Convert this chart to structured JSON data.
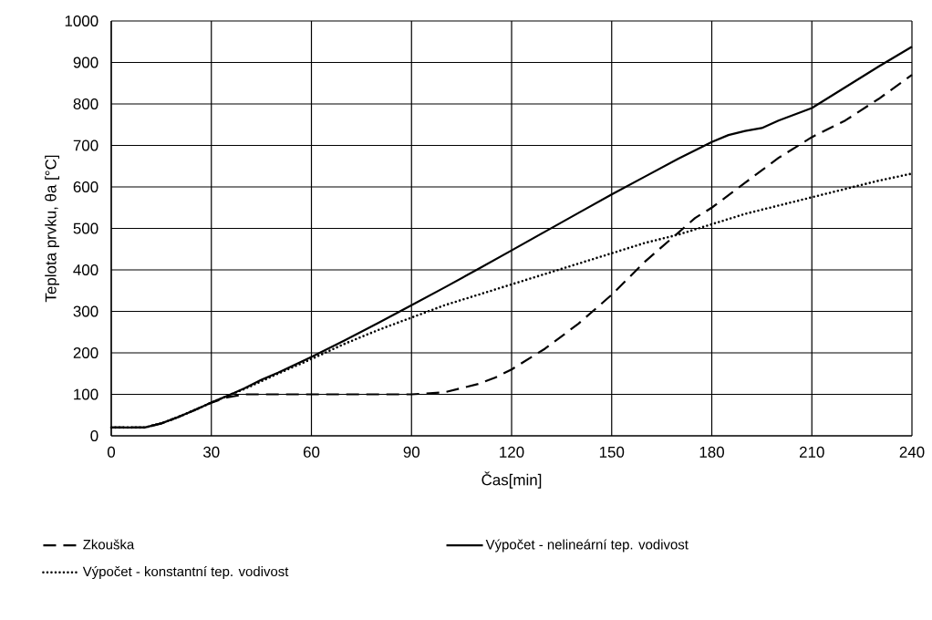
{
  "chart_data": {
    "type": "line",
    "xlabel": "Čas[min]",
    "ylabel": "Teplota prvku, θa [°C]",
    "xlim": [
      0,
      240
    ],
    "xticks": [
      0,
      30,
      60,
      90,
      120,
      150,
      180,
      210,
      240
    ],
    "ylim": [
      0,
      1000
    ],
    "yticks": [
      0,
      100,
      200,
      300,
      400,
      500,
      600,
      700,
      800,
      900,
      1000
    ],
    "grid": true,
    "legend": "bottom",
    "marker": "none",
    "series": [
      {
        "name": "Zkouška",
        "color": "#000000",
        "line_style": "dashed",
        "x": [
          0,
          10,
          15,
          20,
          25,
          30,
          35,
          40,
          60,
          90,
          100,
          110,
          115,
          120,
          130,
          140,
          150,
          160,
          170,
          175,
          180,
          190,
          200,
          210,
          220,
          230,
          240
        ],
        "values": [
          20,
          20,
          30,
          45,
          62,
          80,
          93,
          100,
          100,
          100,
          105,
          125,
          140,
          160,
          210,
          270,
          340,
          420,
          490,
          525,
          550,
          610,
          670,
          720,
          760,
          812,
          870
        ]
      },
      {
        "name": "Výpočet - nelineární tep. vodivost",
        "color": "#000000",
        "line_style": "solid",
        "x": [
          0,
          10,
          15,
          20,
          25,
          30,
          35,
          40,
          45,
          50,
          60,
          70,
          80,
          90,
          100,
          110,
          120,
          130,
          140,
          150,
          160,
          170,
          180,
          185,
          190,
          195,
          200,
          210,
          220,
          230,
          240
        ],
        "values": [
          20,
          20,
          30,
          45,
          62,
          80,
          97,
          115,
          135,
          152,
          190,
          230,
          272,
          315,
          358,
          402,
          447,
          492,
          537,
          582,
          625,
          668,
          708,
          725,
          735,
          742,
          760,
          790,
          840,
          890,
          938
        ]
      },
      {
        "name": "Výpočet - konstantní tep. vodivost",
        "color": "#000000",
        "line_style": "dotted",
        "x": [
          0,
          10,
          15,
          20,
          25,
          30,
          35,
          40,
          50,
          60,
          70,
          80,
          90,
          100,
          110,
          120,
          130,
          140,
          150,
          160,
          170,
          180,
          190,
          200,
          210,
          220,
          230,
          240
        ],
        "values": [
          20,
          20,
          30,
          45,
          62,
          80,
          97,
          113,
          150,
          185,
          222,
          255,
          285,
          315,
          340,
          365,
          390,
          415,
          440,
          465,
          485,
          510,
          535,
          555,
          575,
          595,
          615,
          632
        ]
      }
    ]
  }
}
